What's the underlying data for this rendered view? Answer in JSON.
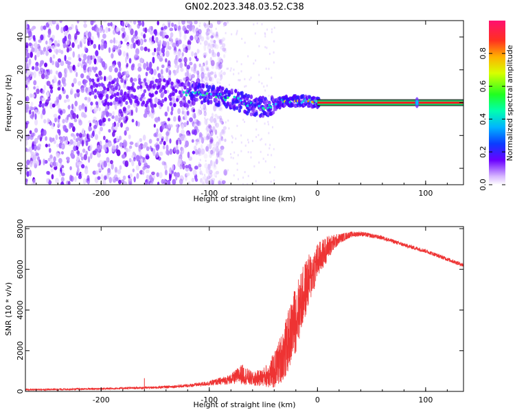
{
  "figure_title": "GN02.2023.348.03.52.C38",
  "chart_data": [
    {
      "type": "heatmap",
      "xlabel": "Height of straight line (km)",
      "ylabel": "Frequency (Hz)",
      "xlim": [
        -270,
        135
      ],
      "ylim": [
        -50,
        50
      ],
      "x_ticks": [
        -200,
        -100,
        0,
        100
      ],
      "y_ticks": [
        -40,
        -20,
        0,
        20,
        40
      ],
      "colorbar": {
        "label": "Normalized spectral amplitude",
        "range": [
          0,
          1
        ],
        "ticks": [
          0.0,
          0.2,
          0.4,
          0.6,
          0.8
        ]
      },
      "noise_region_x": [
        -270,
        -110
      ],
      "signal_track": {
        "x": [
          -120,
          -105,
          -95,
          -85,
          -75,
          -65,
          -55,
          -48,
          -42,
          -35,
          -28,
          -20,
          -10,
          0,
          135
        ],
        "freq": [
          6,
          6,
          5,
          3,
          2,
          -1,
          -2,
          -3,
          -2,
          0,
          1,
          1,
          1,
          0,
          0
        ]
      },
      "secondary_blob_x": 92
    },
    {
      "type": "line",
      "xlabel": "Height of straight line (km)",
      "ylabel": "SNR (10 * v/v)",
      "xlim": [
        -270,
        135
      ],
      "ylim": [
        0,
        8100
      ],
      "x_ticks": [
        -200,
        -100,
        0,
        100
      ],
      "y_ticks": [
        0,
        2000,
        4000,
        6000,
        8000
      ],
      "color": "#ee3333",
      "envelope": {
        "x": [
          -270,
          -200,
          -150,
          -120,
          -100,
          -80,
          -70,
          -60,
          -50,
          -40,
          -30,
          -20,
          -10,
          0,
          10,
          20,
          30,
          40,
          60,
          80,
          100,
          120,
          135
        ],
        "mean": [
          80,
          130,
          190,
          280,
          400,
          600,
          850,
          600,
          700,
          1000,
          2000,
          3600,
          5200,
          6400,
          7100,
          7500,
          7700,
          7750,
          7550,
          7200,
          6900,
          6500,
          6200
        ],
        "spread": [
          40,
          50,
          60,
          80,
          120,
          250,
          500,
          350,
          450,
          900,
          1400,
          1700,
          1400,
          900,
          600,
          250,
          150,
          120,
          100,
          100,
          100,
          100,
          100
        ]
      }
    }
  ]
}
